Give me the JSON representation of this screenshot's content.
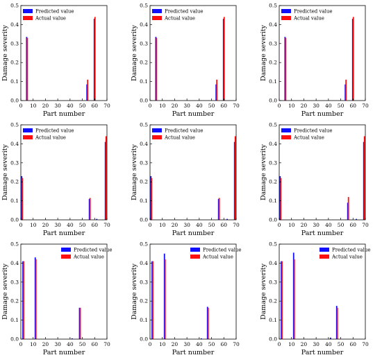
{
  "chart_data": [
    {
      "type": "bar",
      "xlabel": "Part number",
      "ylabel": "Damage severity",
      "xlim": [
        0,
        70
      ],
      "ylim": [
        0,
        0.5
      ],
      "xticks": [
        "0",
        "10",
        "20",
        "30",
        "40",
        "50",
        "60",
        "70"
      ],
      "yticks": [
        "0.0",
        "0.1",
        "0.2",
        "0.3",
        "0.4",
        "0.5"
      ],
      "legend_position": "top-left",
      "series": [
        {
          "name": "Predicted value",
          "color": "#1010ff",
          "points": [
            [
              5,
              0.335
            ],
            [
              54,
              0.085
            ],
            [
              60,
              0.43
            ]
          ]
        },
        {
          "name": "Actual value",
          "color": "#ff1010",
          "points": [
            [
              5,
              0.33
            ],
            [
              54,
              0.11
            ],
            [
              60,
              0.44
            ]
          ]
        }
      ]
    },
    {
      "type": "bar",
      "xlabel": "Part number",
      "ylabel": "Damage severity",
      "xlim": [
        0,
        70
      ],
      "ylim": [
        0,
        0.5
      ],
      "xticks": [
        "0",
        "10",
        "20",
        "30",
        "40",
        "50",
        "60",
        "70"
      ],
      "yticks": [
        "0.0",
        "0.1",
        "0.2",
        "0.3",
        "0.4",
        "0.5"
      ],
      "legend_position": "top-left",
      "series": [
        {
          "name": "Predicted value",
          "color": "#1010ff",
          "points": [
            [
              5,
              0.335
            ],
            [
              54,
              0.085
            ],
            [
              60,
              0.43
            ]
          ]
        },
        {
          "name": "Actual value",
          "color": "#ff1010",
          "points": [
            [
              5,
              0.33
            ],
            [
              54,
              0.11
            ],
            [
              60,
              0.44
            ]
          ]
        }
      ]
    },
    {
      "type": "bar",
      "xlabel": "Part number",
      "ylabel": "Damage severity",
      "xlim": [
        0,
        70
      ],
      "ylim": [
        0,
        0.5
      ],
      "xticks": [
        "0",
        "10",
        "20",
        "30",
        "40",
        "50",
        "60",
        "70"
      ],
      "yticks": [
        "0.0",
        "0.1",
        "0.2",
        "0.3",
        "0.4",
        "0.5"
      ],
      "legend_position": "top-left",
      "series": [
        {
          "name": "Predicted value",
          "color": "#1010ff",
          "points": [
            [
              5,
              0.335
            ],
            [
              54,
              0.085
            ],
            [
              60,
              0.43
            ]
          ]
        },
        {
          "name": "Actual value",
          "color": "#ff1010",
          "points": [
            [
              5,
              0.33
            ],
            [
              54,
              0.11
            ],
            [
              60,
              0.44
            ]
          ]
        }
      ]
    },
    {
      "type": "bar",
      "xlabel": "Part number",
      "ylabel": "Damage severity",
      "xlim": [
        0,
        70
      ],
      "ylim": [
        0,
        0.5
      ],
      "xticks": [
        "0",
        "10",
        "20",
        "30",
        "40",
        "50",
        "60",
        "70"
      ],
      "yticks": [
        "0.0",
        "0.1",
        "0.2",
        "0.3",
        "0.4",
        "0.5"
      ],
      "legend_position": "top-left",
      "series": [
        {
          "name": "Predicted value",
          "color": "#1010ff",
          "points": [
            [
              1,
              0.23
            ],
            [
              56,
              0.11
            ],
            [
              62,
              0.005
            ],
            [
              69,
              0.41
            ]
          ]
        },
        {
          "name": "Actual value",
          "color": "#ff1010",
          "points": [
            [
              1,
              0.22
            ],
            [
              56,
              0.115
            ],
            [
              69,
              0.44
            ]
          ]
        }
      ]
    },
    {
      "type": "bar",
      "xlabel": "Part number",
      "ylabel": "Damage severity",
      "xlim": [
        0,
        70
      ],
      "ylim": [
        0,
        0.5
      ],
      "xticks": [
        "0",
        "10",
        "20",
        "30",
        "40",
        "50",
        "60",
        "70"
      ],
      "yticks": [
        "0.0",
        "0.1",
        "0.2",
        "0.3",
        "0.4",
        "0.5"
      ],
      "legend_position": "top-left",
      "series": [
        {
          "name": "Predicted value",
          "color": "#1010ff",
          "points": [
            [
              1,
              0.23
            ],
            [
              56,
              0.11
            ],
            [
              63,
              0.005
            ],
            [
              69,
              0.41
            ]
          ]
        },
        {
          "name": "Actual value",
          "color": "#ff1010",
          "points": [
            [
              1,
              0.22
            ],
            [
              56,
              0.115
            ],
            [
              69,
              0.44
            ]
          ]
        }
      ]
    },
    {
      "type": "bar",
      "xlabel": "Part number",
      "ylabel": "Damage severity",
      "xlim": [
        0,
        70
      ],
      "ylim": [
        0,
        0.5
      ],
      "xticks": [
        "0",
        "10",
        "20",
        "30",
        "40",
        "50",
        "60",
        "70"
      ],
      "yticks": [
        "0.0",
        "0.1",
        "0.2",
        "0.3",
        "0.4",
        "0.5"
      ],
      "legend_position": "top-left",
      "series": [
        {
          "name": "Predicted value",
          "color": "#1010ff",
          "points": [
            [
              1,
              0.23
            ],
            [
              56,
              0.09
            ],
            [
              63,
              0.005
            ],
            [
              69,
              0.41
            ]
          ]
        },
        {
          "name": "Actual value",
          "color": "#ff1010",
          "points": [
            [
              1,
              0.22
            ],
            [
              56,
              0.12
            ],
            [
              69,
              0.44
            ]
          ]
        }
      ]
    },
    {
      "type": "bar",
      "xlabel": "Part number",
      "ylabel": "Damage severity",
      "xlim": [
        0,
        70
      ],
      "ylim": [
        0,
        0.5
      ],
      "xticks": [
        "0",
        "10",
        "20",
        "30",
        "40",
        "50",
        "60",
        "70"
      ],
      "yticks": [
        "0.0",
        "0.1",
        "0.2",
        "0.3",
        "0.4",
        "0.5"
      ],
      "legend_position": "top-right",
      "series": [
        {
          "name": "Predicted value",
          "color": "#1010ff",
          "points": [
            [
              2,
              0.41
            ],
            [
              12,
              0.43
            ],
            [
              42,
              0.004
            ],
            [
              48,
              0.165
            ]
          ]
        },
        {
          "name": "Actual value",
          "color": "#ff1010",
          "points": [
            [
              2,
              0.41
            ],
            [
              12,
              0.42
            ],
            [
              48,
              0.165
            ]
          ]
        }
      ]
    },
    {
      "type": "bar",
      "xlabel": "Part number",
      "ylabel": "Damage severity",
      "xlim": [
        0,
        70
      ],
      "ylim": [
        0,
        0.5
      ],
      "xticks": [
        "0",
        "10",
        "20",
        "30",
        "40",
        "50",
        "60",
        "70"
      ],
      "yticks": [
        "0.0",
        "0.1",
        "0.2",
        "0.3",
        "0.4",
        "0.5"
      ],
      "legend_position": "top-right",
      "series": [
        {
          "name": "Predicted value",
          "color": "#1010ff",
          "points": [
            [
              2,
              0.41
            ],
            [
              12,
              0.45
            ],
            [
              42,
              0.004
            ],
            [
              47,
              0.17
            ]
          ]
        },
        {
          "name": "Actual value",
          "color": "#ff1010",
          "points": [
            [
              2,
              0.41
            ],
            [
              12,
              0.42
            ],
            [
              47,
              0.165
            ]
          ]
        }
      ]
    },
    {
      "type": "bar",
      "xlabel": "Part number",
      "ylabel": "Damage severity",
      "xlim": [
        0,
        70
      ],
      "ylim": [
        0,
        0.5
      ],
      "xticks": [
        "0",
        "10",
        "20",
        "30",
        "40",
        "50",
        "60",
        "70"
      ],
      "yticks": [
        "0.0",
        "0.1",
        "0.2",
        "0.3",
        "0.4",
        "0.5"
      ],
      "legend_position": "top-right",
      "series": [
        {
          "name": "Predicted value",
          "color": "#1010ff",
          "points": [
            [
              2,
              0.41
            ],
            [
              12,
              0.455
            ],
            [
              42,
              0.008
            ],
            [
              47,
              0.175
            ]
          ]
        },
        {
          "name": "Actual value",
          "color": "#ff1010",
          "points": [
            [
              2,
              0.41
            ],
            [
              12,
              0.42
            ],
            [
              47,
              0.165
            ]
          ]
        }
      ]
    }
  ]
}
